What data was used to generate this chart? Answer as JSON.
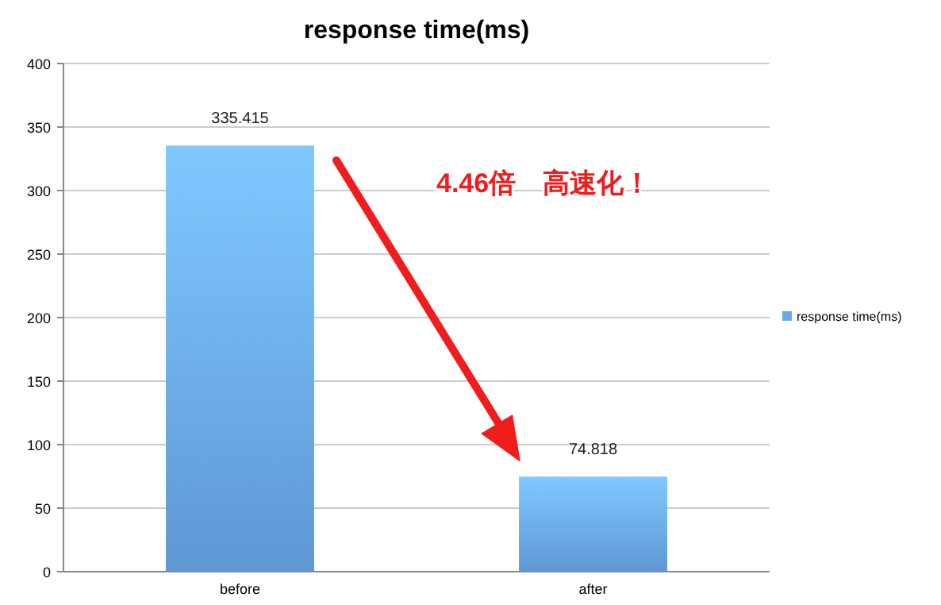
{
  "chart_data": {
    "type": "bar",
    "title": "response time(ms)",
    "categories": [
      "before",
      "after"
    ],
    "series": [
      {
        "name": "response time(ms)",
        "color": "#6aa8ec",
        "values": [
          335.415,
          74.818
        ]
      }
    ],
    "ylim": [
      0,
      400
    ],
    "yticks": [
      0,
      50,
      100,
      150,
      200,
      250,
      300,
      350,
      400
    ],
    "grid": "y",
    "legend": "right",
    "data_labels": true,
    "annotations": [
      "4.46倍　高速化！"
    ]
  }
}
